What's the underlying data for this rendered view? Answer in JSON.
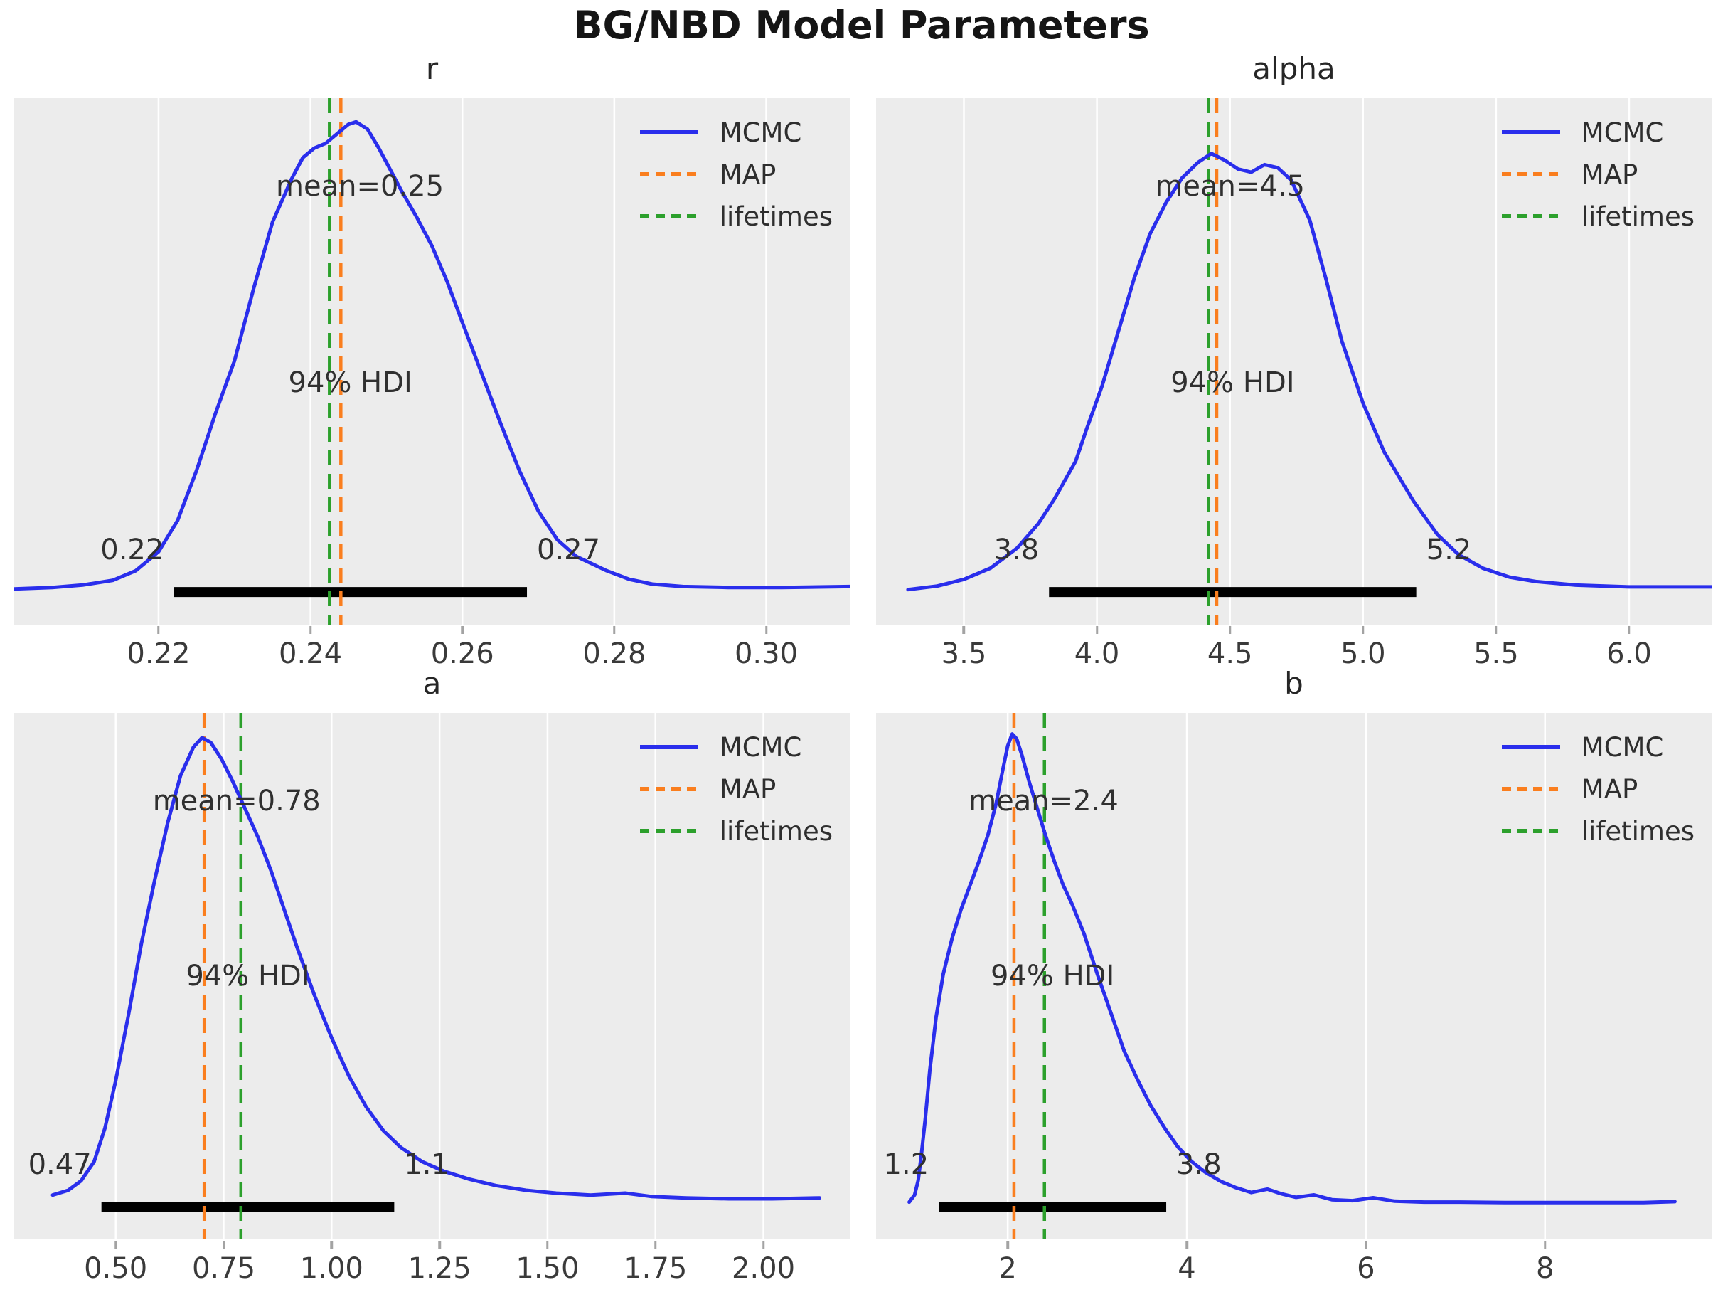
{
  "figure": {
    "title": "BG/NBD Model Parameters",
    "background": "#ffffff",
    "axes_background": "#ececec",
    "grid_color": "#ffffff",
    "tick_color": "#a3a3a3",
    "text_color": "#303030",
    "hdi_bar_color": "#000000"
  },
  "legend": {
    "position": "upper right",
    "items": [
      {
        "label": "MCMC",
        "color": "#2a2eec",
        "dashed": false
      },
      {
        "label": "MAP",
        "color": "#fa7e1e",
        "dashed": true
      },
      {
        "label": "lifetimes",
        "color": "#2ca02c",
        "dashed": true
      }
    ]
  },
  "chart_data": [
    {
      "type": "kde",
      "id": "r",
      "title": "r",
      "mean": 0.25,
      "mean_label": "mean=0.25",
      "mean_x": 0.2465,
      "map_x": 0.244,
      "lifetimes_x": 0.2425,
      "hdi": {
        "text": "94% HDI",
        "probability": 0.94,
        "lower": 0.222,
        "upper": 0.2685,
        "lower_label": "0.22",
        "upper_label": "0.27"
      },
      "xlim": [
        0.201,
        0.311
      ],
      "xticks": [
        {
          "value": 0.22,
          "label": "0.22"
        },
        {
          "value": 0.24,
          "label": "0.24"
        },
        {
          "value": 0.26,
          "label": "0.26"
        },
        {
          "value": 0.28,
          "label": "0.28"
        },
        {
          "value": 0.3,
          "label": "0.30"
        }
      ],
      "curve": [
        [
          0.201,
          0.022
        ],
        [
          0.206,
          0.025
        ],
        [
          0.21,
          0.03
        ],
        [
          0.214,
          0.04
        ],
        [
          0.217,
          0.06
        ],
        [
          0.22,
          0.1
        ],
        [
          0.2225,
          0.165
        ],
        [
          0.225,
          0.27
        ],
        [
          0.2275,
          0.39
        ],
        [
          0.23,
          0.5
        ],
        [
          0.2325,
          0.65
        ],
        [
          0.235,
          0.79
        ],
        [
          0.2375,
          0.88
        ],
        [
          0.239,
          0.925
        ],
        [
          0.2405,
          0.945
        ],
        [
          0.242,
          0.955
        ],
        [
          0.2435,
          0.975
        ],
        [
          0.245,
          0.995
        ],
        [
          0.246,
          1.0
        ],
        [
          0.2475,
          0.985
        ],
        [
          0.249,
          0.945
        ],
        [
          0.2505,
          0.9
        ],
        [
          0.252,
          0.855
        ],
        [
          0.254,
          0.8
        ],
        [
          0.256,
          0.74
        ],
        [
          0.258,
          0.665
        ],
        [
          0.26,
          0.58
        ],
        [
          0.2625,
          0.475
        ],
        [
          0.265,
          0.37
        ],
        [
          0.2675,
          0.27
        ],
        [
          0.27,
          0.185
        ],
        [
          0.2725,
          0.125
        ],
        [
          0.275,
          0.09
        ],
        [
          0.277,
          0.075
        ],
        [
          0.279,
          0.06
        ],
        [
          0.282,
          0.042
        ],
        [
          0.285,
          0.032
        ],
        [
          0.289,
          0.027
        ],
        [
          0.295,
          0.025
        ],
        [
          0.302,
          0.025
        ],
        [
          0.311,
          0.027
        ]
      ]
    },
    {
      "type": "kde",
      "id": "alpha",
      "title": "alpha",
      "mean": 4.5,
      "mean_label": "mean=4.5",
      "mean_x": 4.5,
      "map_x": 4.45,
      "lifetimes_x": 4.42,
      "hdi": {
        "text": "94% HDI",
        "probability": 0.94,
        "lower": 3.82,
        "upper": 5.2,
        "lower_label": "3.8",
        "upper_label": "5.2"
      },
      "xlim": [
        3.17,
        6.31
      ],
      "xticks": [
        {
          "value": 3.5,
          "label": "3.5"
        },
        {
          "value": 4.0,
          "label": "4.0"
        },
        {
          "value": 4.5,
          "label": "4.5"
        },
        {
          "value": 5.0,
          "label": "5.0"
        },
        {
          "value": 5.5,
          "label": "5.5"
        },
        {
          "value": 6.0,
          "label": "6.0"
        }
      ],
      "curve": [
        [
          3.29,
          0.022
        ],
        [
          3.4,
          0.03
        ],
        [
          3.5,
          0.045
        ],
        [
          3.6,
          0.07
        ],
        [
          3.7,
          0.115
        ],
        [
          3.78,
          0.17
        ],
        [
          3.84,
          0.225
        ],
        [
          3.92,
          0.31
        ],
        [
          3.96,
          0.38
        ],
        [
          4.02,
          0.48
        ],
        [
          4.08,
          0.6
        ],
        [
          4.14,
          0.72
        ],
        [
          4.2,
          0.82
        ],
        [
          4.26,
          0.89
        ],
        [
          4.32,
          0.945
        ],
        [
          4.38,
          0.98
        ],
        [
          4.43,
          1.0
        ],
        [
          4.48,
          0.985
        ],
        [
          4.53,
          0.965
        ],
        [
          4.58,
          0.958
        ],
        [
          4.63,
          0.975
        ],
        [
          4.68,
          0.968
        ],
        [
          4.73,
          0.94
        ],
        [
          4.8,
          0.85
        ],
        [
          4.86,
          0.72
        ],
        [
          4.92,
          0.58
        ],
        [
          5.0,
          0.44
        ],
        [
          5.08,
          0.33
        ],
        [
          5.19,
          0.22
        ],
        [
          5.28,
          0.145
        ],
        [
          5.36,
          0.1
        ],
        [
          5.45,
          0.07
        ],
        [
          5.55,
          0.05
        ],
        [
          5.65,
          0.04
        ],
        [
          5.8,
          0.032
        ],
        [
          6.0,
          0.028
        ],
        [
          6.31,
          0.028
        ]
      ]
    },
    {
      "type": "kde",
      "id": "a",
      "title": "a",
      "mean": 0.78,
      "mean_label": "mean=0.78",
      "mean_x": 0.78,
      "map_x": 0.705,
      "lifetimes_x": 0.79,
      "hdi": {
        "text": "94% HDI",
        "probability": 0.94,
        "lower": 0.467,
        "upper": 1.145,
        "lower_label": "0.47",
        "upper_label": "1.1"
      },
      "xlim": [
        0.265,
        2.2
      ],
      "xticks": [
        {
          "value": 0.5,
          "label": "0.50"
        },
        {
          "value": 0.75,
          "label": "0.75"
        },
        {
          "value": 1.0,
          "label": "1.00"
        },
        {
          "value": 1.25,
          "label": "1.25"
        },
        {
          "value": 1.5,
          "label": "1.50"
        },
        {
          "value": 1.75,
          "label": "1.75"
        },
        {
          "value": 2.0,
          "label": "2.00"
        }
      ],
      "curve": [
        [
          0.354,
          0.04
        ],
        [
          0.39,
          0.05
        ],
        [
          0.42,
          0.07
        ],
        [
          0.45,
          0.11
        ],
        [
          0.475,
          0.18
        ],
        [
          0.5,
          0.28
        ],
        [
          0.53,
          0.42
        ],
        [
          0.56,
          0.57
        ],
        [
          0.59,
          0.7
        ],
        [
          0.62,
          0.82
        ],
        [
          0.65,
          0.92
        ],
        [
          0.68,
          0.98
        ],
        [
          0.7,
          1.0
        ],
        [
          0.72,
          0.99
        ],
        [
          0.745,
          0.955
        ],
        [
          0.77,
          0.91
        ],
        [
          0.8,
          0.85
        ],
        [
          0.83,
          0.79
        ],
        [
          0.86,
          0.72
        ],
        [
          0.89,
          0.64
        ],
        [
          0.92,
          0.56
        ],
        [
          0.96,
          0.46
        ],
        [
          1.0,
          0.37
        ],
        [
          1.04,
          0.29
        ],
        [
          1.08,
          0.225
        ],
        [
          1.12,
          0.175
        ],
        [
          1.16,
          0.14
        ],
        [
          1.21,
          0.11
        ],
        [
          1.26,
          0.09
        ],
        [
          1.32,
          0.073
        ],
        [
          1.38,
          0.06
        ],
        [
          1.45,
          0.05
        ],
        [
          1.52,
          0.044
        ],
        [
          1.6,
          0.04
        ],
        [
          1.68,
          0.044
        ],
        [
          1.74,
          0.037
        ],
        [
          1.82,
          0.034
        ],
        [
          1.92,
          0.032
        ],
        [
          2.02,
          0.032
        ],
        [
          2.13,
          0.034
        ]
      ]
    },
    {
      "type": "kde",
      "id": "b",
      "title": "b",
      "mean": 2.4,
      "mean_label": "mean=2.4",
      "mean_x": 2.4,
      "map_x": 2.07,
      "lifetimes_x": 2.41,
      "hdi": {
        "text": "94% HDI",
        "probability": 0.94,
        "lower": 1.23,
        "upper": 3.77,
        "lower_label": "1.2",
        "upper_label": "3.8"
      },
      "xlim": [
        0.53,
        9.86
      ],
      "xticks": [
        {
          "value": 2,
          "label": "2"
        },
        {
          "value": 4,
          "label": "4"
        },
        {
          "value": 6,
          "label": "6"
        },
        {
          "value": 8,
          "label": "8"
        }
      ],
      "curve": [
        [
          0.9,
          0.025
        ],
        [
          0.96,
          0.04
        ],
        [
          1.0,
          0.07
        ],
        [
          1.04,
          0.13
        ],
        [
          1.08,
          0.2
        ],
        [
          1.13,
          0.3
        ],
        [
          1.2,
          0.41
        ],
        [
          1.28,
          0.5
        ],
        [
          1.38,
          0.575
        ],
        [
          1.48,
          0.635
        ],
        [
          1.58,
          0.685
        ],
        [
          1.68,
          0.735
        ],
        [
          1.78,
          0.79
        ],
        [
          1.87,
          0.855
        ],
        [
          1.95,
          0.93
        ],
        [
          2.0,
          0.975
        ],
        [
          2.05,
          1.0
        ],
        [
          2.1,
          0.99
        ],
        [
          2.16,
          0.955
        ],
        [
          2.24,
          0.9
        ],
        [
          2.33,
          0.845
        ],
        [
          2.42,
          0.79
        ],
        [
          2.52,
          0.735
        ],
        [
          2.62,
          0.685
        ],
        [
          2.72,
          0.645
        ],
        [
          2.85,
          0.585
        ],
        [
          3.0,
          0.5
        ],
        [
          3.15,
          0.42
        ],
        [
          3.3,
          0.34
        ],
        [
          3.45,
          0.28
        ],
        [
          3.6,
          0.225
        ],
        [
          3.75,
          0.18
        ],
        [
          3.9,
          0.14
        ],
        [
          4.05,
          0.11
        ],
        [
          4.2,
          0.088
        ],
        [
          4.38,
          0.068
        ],
        [
          4.55,
          0.055
        ],
        [
          4.72,
          0.045
        ],
        [
          4.9,
          0.052
        ],
        [
          5.06,
          0.042
        ],
        [
          5.22,
          0.035
        ],
        [
          5.42,
          0.04
        ],
        [
          5.62,
          0.03
        ],
        [
          5.85,
          0.028
        ],
        [
          6.08,
          0.034
        ],
        [
          6.32,
          0.027
        ],
        [
          6.65,
          0.025
        ],
        [
          7.05,
          0.025
        ],
        [
          7.55,
          0.024
        ],
        [
          8.1,
          0.024
        ],
        [
          8.7,
          0.024
        ],
        [
          9.1,
          0.024
        ],
        [
          9.45,
          0.026
        ]
      ]
    }
  ]
}
